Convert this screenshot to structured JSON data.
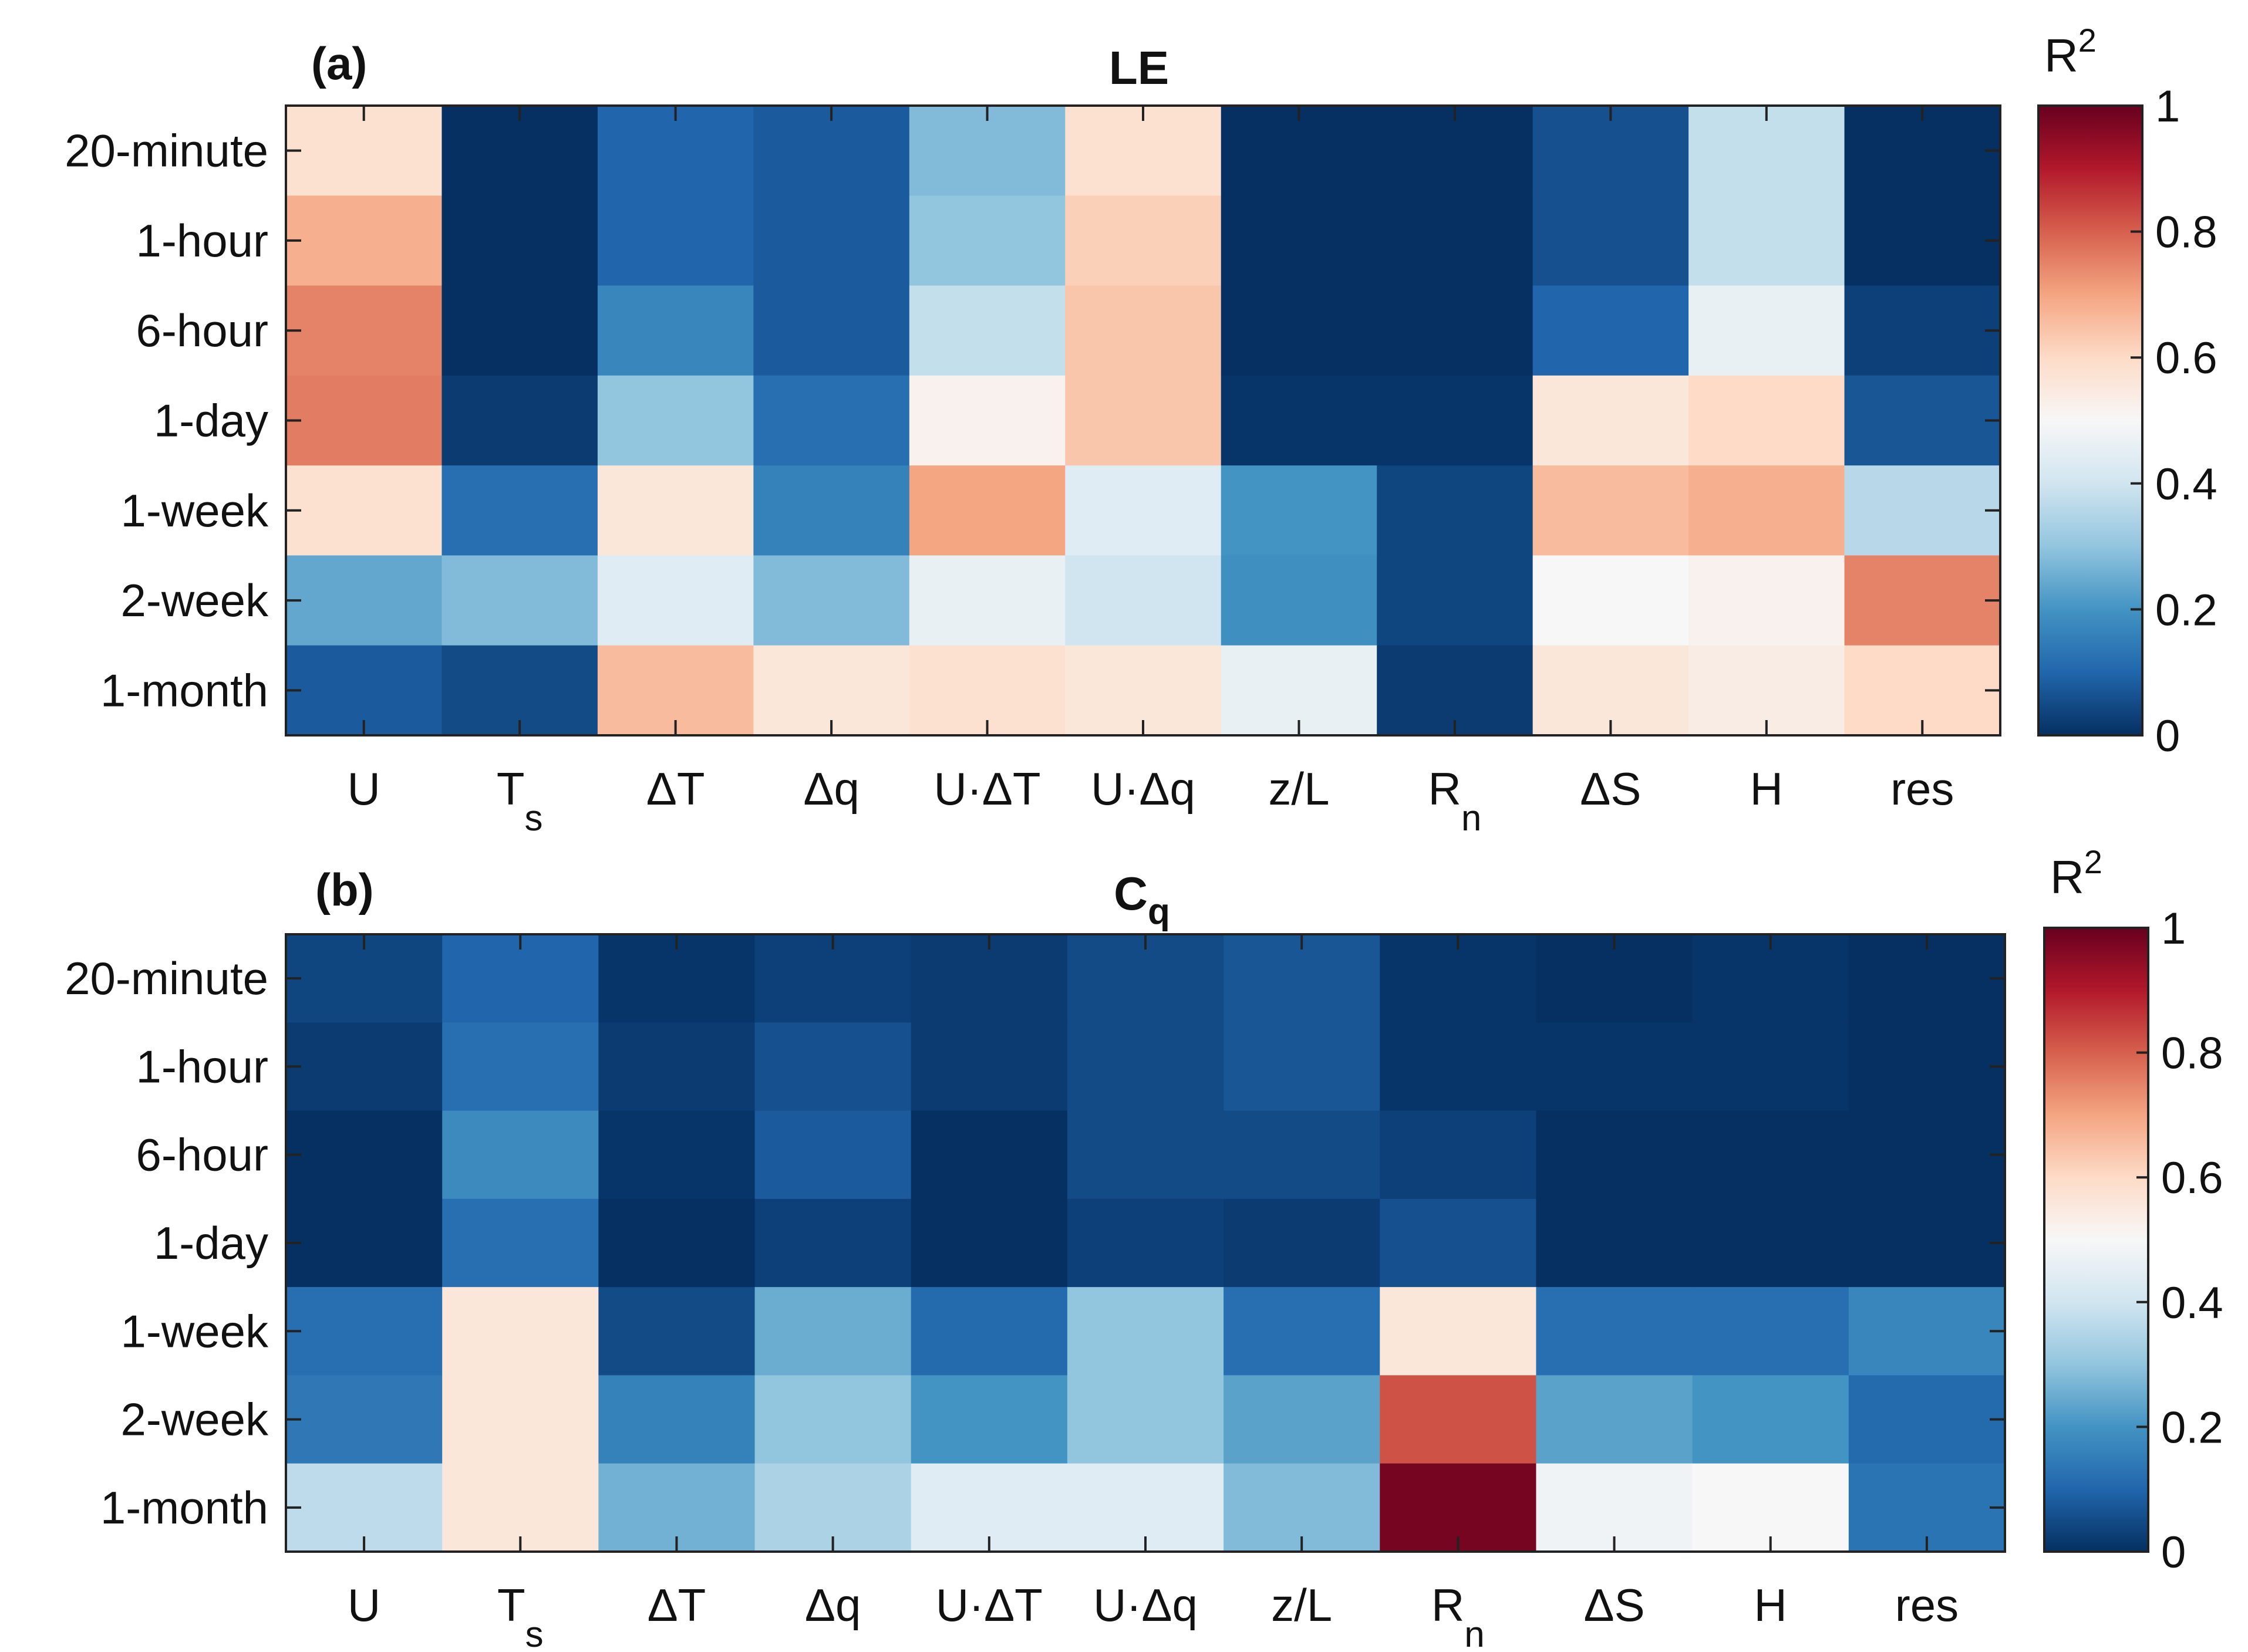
{
  "colorbar": {
    "title": "R",
    "title_sup": "2",
    "ticks": [
      "0",
      "0.2",
      "0.4",
      "0.6",
      "0.8",
      "1"
    ],
    "range": [
      0,
      1
    ],
    "colormap": [
      "#053061",
      "#2166ac",
      "#4393c3",
      "#92c5de",
      "#d1e5f0",
      "#f7f7f7",
      "#fddbc7",
      "#f4a582",
      "#d6604d",
      "#b2182b",
      "#67001f"
    ],
    "colormap_note": "diverging blue-white-red"
  },
  "chart_data": [
    {
      "type": "heatmap",
      "panel_label": "(a)",
      "title": "LE",
      "title_sub": "",
      "rows": [
        "20-minute",
        "1-hour",
        "6-hour",
        "1-day",
        "1-week",
        "2-week",
        "1-month"
      ],
      "cols": [
        {
          "main": "U",
          "sub": ""
        },
        {
          "main": "T",
          "sub": "s"
        },
        {
          "main": "ΔT",
          "sub": ""
        },
        {
          "main": "Δq",
          "sub": ""
        },
        {
          "main": "U·ΔT",
          "sub": ""
        },
        {
          "main": "U·Δq",
          "sub": ""
        },
        {
          "main": "z/L",
          "sub": ""
        },
        {
          "main": "R",
          "sub": "n"
        },
        {
          "main": "ΔS",
          "sub": ""
        },
        {
          "main": "H",
          "sub": ""
        },
        {
          "main": "res",
          "sub": ""
        }
      ],
      "values": [
        [
          0.58,
          0.0,
          0.1,
          0.08,
          0.28,
          0.58,
          0.0,
          0.0,
          0.06,
          0.38,
          0.0
        ],
        [
          0.68,
          0.0,
          0.1,
          0.08,
          0.3,
          0.62,
          0.0,
          0.0,
          0.06,
          0.38,
          0.0
        ],
        [
          0.75,
          0.0,
          0.17,
          0.08,
          0.38,
          0.64,
          0.0,
          0.0,
          0.1,
          0.46,
          0.03
        ],
        [
          0.76,
          0.02,
          0.3,
          0.12,
          0.52,
          0.64,
          0.01,
          0.01,
          0.56,
          0.6,
          0.07
        ],
        [
          0.58,
          0.12,
          0.56,
          0.16,
          0.7,
          0.44,
          0.2,
          0.04,
          0.66,
          0.68,
          0.36
        ],
        [
          0.24,
          0.28,
          0.44,
          0.28,
          0.46,
          0.4,
          0.19,
          0.04,
          0.5,
          0.52,
          0.75
        ],
        [
          0.08,
          0.05,
          0.66,
          0.56,
          0.58,
          0.56,
          0.46,
          0.02,
          0.56,
          0.54,
          0.6
        ]
      ],
      "xlim": [
        0,
        11
      ],
      "clim": [
        0,
        1
      ]
    },
    {
      "type": "heatmap",
      "panel_label": "(b)",
      "title": "C",
      "title_sub": "q",
      "rows": [
        "20-minute",
        "1-hour",
        "6-hour",
        "1-day",
        "1-week",
        "2-week",
        "1-month"
      ],
      "cols": [
        {
          "main": "U",
          "sub": ""
        },
        {
          "main": "T",
          "sub": "s"
        },
        {
          "main": "ΔT",
          "sub": ""
        },
        {
          "main": "Δq",
          "sub": ""
        },
        {
          "main": "U·ΔT",
          "sub": ""
        },
        {
          "main": "U·Δq",
          "sub": ""
        },
        {
          "main": "z/L",
          "sub": ""
        },
        {
          "main": "R",
          "sub": "n"
        },
        {
          "main": "ΔS",
          "sub": ""
        },
        {
          "main": "H",
          "sub": ""
        },
        {
          "main": "res",
          "sub": ""
        }
      ],
      "values": [
        [
          0.04,
          0.1,
          0.01,
          0.03,
          0.02,
          0.05,
          0.07,
          0.01,
          0.0,
          0.01,
          0.0
        ],
        [
          0.02,
          0.12,
          0.02,
          0.06,
          0.02,
          0.05,
          0.07,
          0.01,
          0.01,
          0.01,
          0.0
        ],
        [
          0.0,
          0.18,
          0.01,
          0.08,
          0.0,
          0.05,
          0.05,
          0.03,
          0.0,
          0.0,
          0.0
        ],
        [
          0.0,
          0.12,
          0.0,
          0.03,
          0.0,
          0.03,
          0.02,
          0.06,
          0.0,
          0.0,
          0.0
        ],
        [
          0.12,
          0.56,
          0.05,
          0.25,
          0.11,
          0.3,
          0.12,
          0.56,
          0.12,
          0.12,
          0.17
        ],
        [
          0.14,
          0.56,
          0.16,
          0.3,
          0.2,
          0.3,
          0.23,
          0.82,
          0.23,
          0.2,
          0.11
        ],
        [
          0.37,
          0.56,
          0.26,
          0.34,
          0.44,
          0.44,
          0.28,
          0.98,
          0.48,
          0.5,
          0.13
        ]
      ],
      "xlim": [
        0,
        11
      ],
      "clim": [
        0,
        1
      ]
    }
  ]
}
